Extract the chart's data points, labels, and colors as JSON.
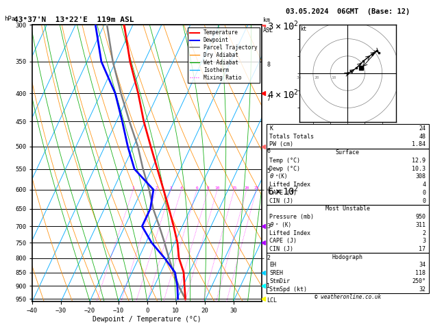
{
  "title_left": "43°37'N  13°22'E  119m ASL",
  "title_right": "03.05.2024  06GMT  (Base: 12)",
  "xlabel": "Dewpoint / Temperature (°C)",
  "pressure_levels": [
    300,
    350,
    400,
    450,
    500,
    550,
    600,
    650,
    700,
    750,
    800,
    850,
    900,
    950
  ],
  "temp_ticks": [
    -40,
    -30,
    -20,
    -10,
    0,
    10,
    20,
    30
  ],
  "km_labels": [
    [
      "LCL",
      955
    ],
    [
      "1",
      900
    ],
    [
      "2",
      800
    ],
    [
      "3",
      700
    ],
    [
      "4",
      600
    ],
    [
      "5",
      555
    ],
    [
      "6",
      510
    ],
    [
      "7",
      410
    ],
    [
      "8",
      355
    ]
  ],
  "temperature_profile": {
    "pressure": [
      950,
      900,
      850,
      800,
      750,
      700,
      650,
      600,
      550,
      500,
      450,
      400,
      350,
      300
    ],
    "temp": [
      12.9,
      10.5,
      8.0,
      4.0,
      1.0,
      -3.0,
      -7.5,
      -12.5,
      -18.0,
      -24.0,
      -30.5,
      -37.0,
      -45.0,
      -53.0
    ]
  },
  "dewpoint_profile": {
    "pressure": [
      950,
      900,
      850,
      800,
      750,
      700,
      650,
      600,
      550,
      500,
      450,
      400,
      350,
      300
    ],
    "temp": [
      10.3,
      8.0,
      5.0,
      -1.0,
      -8.0,
      -14.0,
      -14.0,
      -16.0,
      -26.0,
      -32.0,
      -38.0,
      -45.0,
      -55.0,
      -63.0
    ]
  },
  "parcel_profile": {
    "pressure": [
      950,
      900,
      850,
      800,
      750,
      700,
      650,
      600,
      550,
      500,
      450,
      400,
      350,
      300
    ],
    "temp": [
      12.9,
      8.5,
      4.5,
      0.5,
      -3.5,
      -8.0,
      -13.0,
      -17.5,
      -23.0,
      -28.5,
      -35.5,
      -43.0,
      -51.0,
      -59.0
    ]
  },
  "stats": {
    "K": 24,
    "Totals_Totals": 48,
    "PW_cm": "1.84",
    "Surface_Temp": "12.9",
    "Surface_Dewp": "10.3",
    "Surface_ThetaE": 308,
    "Surface_LI": 4,
    "Surface_CAPE": 0,
    "Surface_CIN": 0,
    "MU_Pressure": 950,
    "MU_ThetaE": 311,
    "MU_LI": 2,
    "MU_CAPE": 3,
    "MU_CIN": 17,
    "Hodo_EH": 34,
    "Hodo_SREH": 118,
    "Hodo_StmDir": "250°",
    "Hodo_StmSpd": 32
  },
  "colors": {
    "temperature": "#ff0000",
    "dewpoint": "#0000ff",
    "parcel": "#808080",
    "dry_adiabat": "#ff8c00",
    "wet_adiabat": "#00aa00",
    "isotherm": "#00aaff",
    "mixing_ratio": "#ff00ff",
    "background": "#ffffff"
  },
  "wind_barbs": {
    "pressures": [
      950,
      900,
      850,
      800,
      750,
      700
    ],
    "colors": [
      "#ffff00",
      "#00ffff",
      "#00ccff",
      "#aa00ff",
      "#ff6600",
      "#ff0000"
    ]
  },
  "copyright": "© weatheronline.co.uk"
}
